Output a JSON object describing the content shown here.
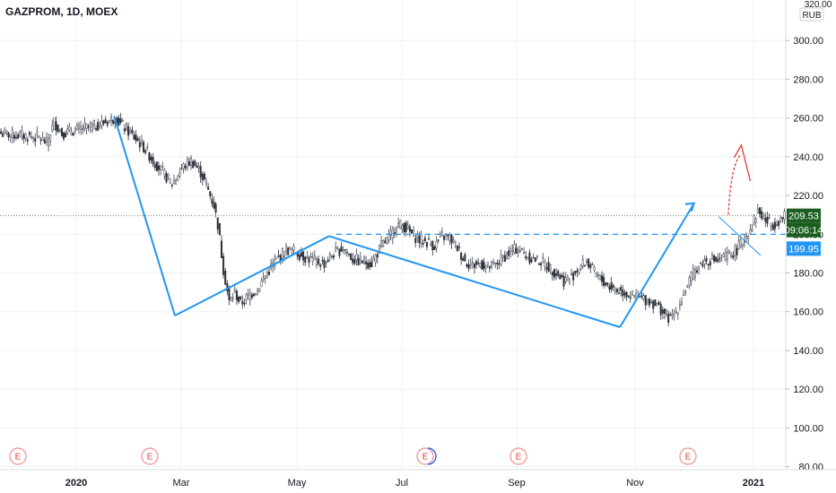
{
  "title": "GAZPROM, 1D, MOEX",
  "currency": "RUB",
  "price_top_clip": "320.00",
  "colors": {
    "up": "#26a69a",
    "down": "#ef5350",
    "candle": "#2b2f38",
    "trend": "#2196f3",
    "forecast": "#e53935",
    "label_price_bg": "#1b5e20",
    "label_level_bg": "#2196f3",
    "grid": "#eef0f3"
  },
  "labels": {
    "last_price": "209.53",
    "countdown": "09:06:14",
    "level": "199.95"
  },
  "events": [
    "E",
    "E",
    "E",
    "E",
    "E"
  ],
  "chart_data": {
    "type": "candlestick",
    "title": "GAZPROM, 1D, MOEX",
    "ylabel": "RUB",
    "ylim": [
      80,
      320
    ],
    "y_ticks": [
      "80.00",
      "100.00",
      "120.00",
      "140.00",
      "160.00",
      "180.00",
      "200.00",
      "220.00",
      "240.00",
      "260.00",
      "280.00",
      "300.00"
    ],
    "x_ticks": [
      "2020",
      "Mar",
      "May",
      "Jul",
      "Sep",
      "Nov",
      "2021"
    ],
    "grid": true,
    "approx_path": [
      [
        0,
        252
      ],
      [
        10,
        251
      ],
      [
        20,
        250
      ],
      [
        24,
        247
      ],
      [
        28,
        258
      ],
      [
        32,
        252
      ],
      [
        40,
        254
      ],
      [
        50,
        256
      ],
      [
        60,
        260
      ],
      [
        65,
        255
      ],
      [
        70,
        250
      ],
      [
        75,
        245
      ],
      [
        80,
        238
      ],
      [
        85,
        232
      ],
      [
        90,
        226
      ],
      [
        95,
        234
      ],
      [
        100,
        238
      ],
      [
        105,
        232
      ],
      [
        108,
        225
      ],
      [
        112,
        215
      ],
      [
        114,
        205
      ],
      [
        117,
        182
      ],
      [
        120,
        165
      ],
      [
        123,
        170
      ],
      [
        126,
        164
      ],
      [
        130,
        168
      ],
      [
        135,
        172
      ],
      [
        140,
        180
      ],
      [
        145,
        187
      ],
      [
        150,
        192
      ],
      [
        155,
        191
      ],
      [
        160,
        188
      ],
      [
        165,
        186
      ],
      [
        170,
        185
      ],
      [
        175,
        190
      ],
      [
        180,
        193
      ],
      [
        185,
        187
      ],
      [
        190,
        186
      ],
      [
        195,
        185
      ],
      [
        200,
        194
      ],
      [
        205,
        199
      ],
      [
        208,
        205
      ],
      [
        212,
        204
      ],
      [
        216,
        200
      ],
      [
        220,
        197
      ],
      [
        224,
        196
      ],
      [
        228,
        194
      ],
      [
        232,
        199
      ],
      [
        236,
        198
      ],
      [
        240,
        193
      ],
      [
        244,
        186
      ],
      [
        248,
        184
      ],
      [
        252,
        185
      ],
      [
        256,
        183
      ],
      [
        260,
        184
      ],
      [
        264,
        188
      ],
      [
        268,
        191
      ],
      [
        272,
        193
      ],
      [
        276,
        189
      ],
      [
        280,
        187
      ],
      [
        284,
        186
      ],
      [
        288,
        183
      ],
      [
        292,
        180
      ],
      [
        296,
        176
      ],
      [
        300,
        178
      ],
      [
        304,
        183
      ],
      [
        308,
        186
      ],
      [
        312,
        180
      ],
      [
        316,
        176
      ],
      [
        320,
        173
      ],
      [
        324,
        171
      ],
      [
        328,
        170
      ],
      [
        332,
        168
      ],
      [
        336,
        167
      ],
      [
        340,
        166
      ],
      [
        344,
        164
      ],
      [
        348,
        160
      ],
      [
        352,
        156
      ],
      [
        355,
        160
      ],
      [
        358,
        167
      ],
      [
        362,
        176
      ],
      [
        366,
        183
      ],
      [
        370,
        186
      ],
      [
        374,
        187
      ],
      [
        378,
        186
      ],
      [
        382,
        189
      ],
      [
        386,
        191
      ],
      [
        390,
        196
      ],
      [
        394,
        203
      ],
      [
        398,
        212
      ],
      [
        402,
        207
      ],
      [
        406,
        205
      ],
      [
        410,
        208
      ],
      [
        414,
        209.53
      ]
    ],
    "trend_lines": [
      {
        "name": "",
        "points": [
          [
            60,
            261
          ],
          [
            92,
            158
          ]
        ]
      },
      {
        "name": "",
        "points": [
          [
            92,
            158
          ],
          [
            173,
            199
          ]
        ]
      },
      {
        "name": "",
        "points": [
          [
            173,
            199
          ],
          [
            326,
            152
          ]
        ]
      },
      {
        "name": "",
        "points": [
          [
            326,
            152
          ],
          [
            365,
            216
          ]
        ]
      },
      {
        "name": "",
        "points": [
          [
            378,
            209
          ],
          [
            400,
            189
          ]
        ]
      }
    ],
    "horizontal_levels": [
      {
        "value": 199.95,
        "style": "dashed"
      },
      {
        "value": 209.53,
        "style": "dotted"
      }
    ],
    "forecast_arrow": {
      "from": [
        383,
        210
      ],
      "to": [
        391,
        229
      ],
      "peak": 246
    }
  }
}
